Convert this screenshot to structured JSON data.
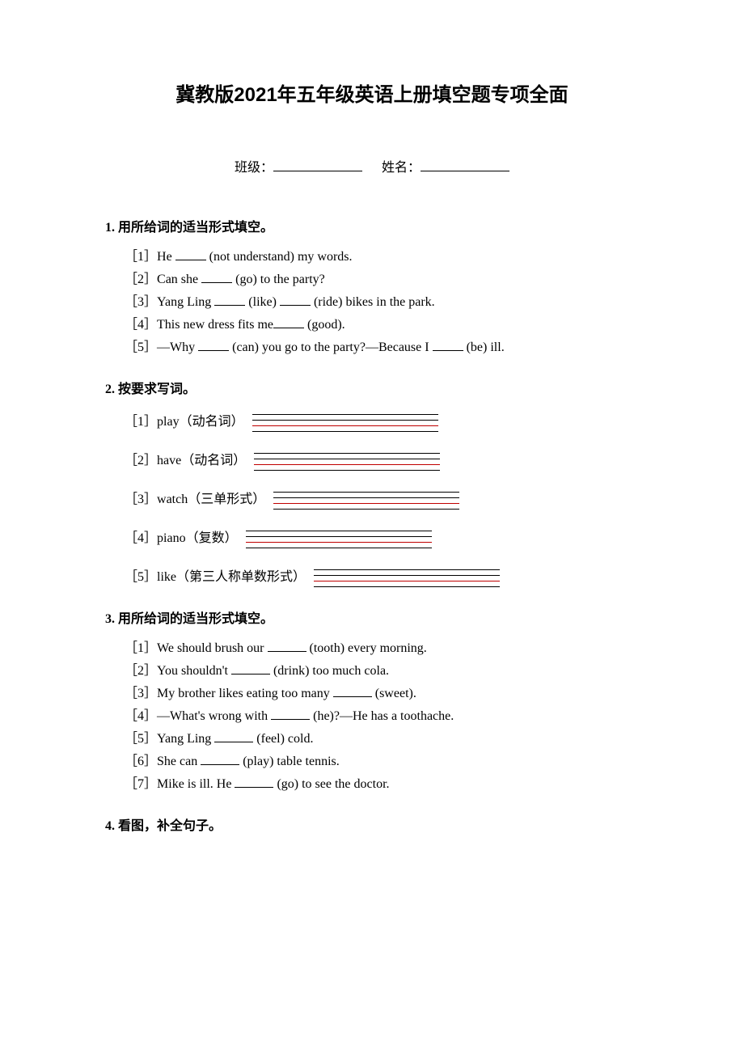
{
  "title": "冀教版2021年五年级英语上册填空题专项全面",
  "info": {
    "class_label": "班级：",
    "name_label": "姓名："
  },
  "sections": {
    "s1": {
      "heading": "1. 用所给词的适当形式填空。",
      "items": [
        {
          "num": "［1］",
          "pre": "He ",
          "post": " (not understand) my words."
        },
        {
          "num": "［2］",
          "pre": "Can she ",
          "post": " (go) to the party?"
        },
        {
          "num": "［3］",
          "pre": "Yang Ling ",
          "mid": " (like) ",
          "post": " (ride) bikes in the park."
        },
        {
          "num": "［4］",
          "pre": "This new dress fits me",
          "post": " (good)."
        },
        {
          "num": "［5］",
          "pre": "—Why ",
          "mid": " (can) you go to the party?—Because I ",
          "post": " (be) ill."
        }
      ]
    },
    "s2": {
      "heading": "2. 按要求写词。",
      "items": [
        {
          "num": "［1］",
          "label": "play（动名词）"
        },
        {
          "num": "［2］",
          "label": "have（动名词）"
        },
        {
          "num": "［3］",
          "label": "watch（三单形式）"
        },
        {
          "num": "［4］",
          "label": "piano（复数）"
        },
        {
          "num": "［5］",
          "label": "like（第三人称单数形式）"
        }
      ]
    },
    "s3": {
      "heading": "3. 用所给词的适当形式填空。",
      "items": [
        {
          "num": "［1］",
          "pre": "We should brush our ",
          "post": " (tooth) every morning."
        },
        {
          "num": "［2］",
          "pre": "You shouldn't ",
          "post": " (drink) too much cola."
        },
        {
          "num": "［3］",
          "pre": "My brother likes eating too many ",
          "post": " (sweet)."
        },
        {
          "num": "［4］",
          "pre": "—What's wrong with ",
          "post": " (he)?—He has a toothache."
        },
        {
          "num": "［5］",
          "pre": "Yang Ling ",
          "post": " (feel) cold."
        },
        {
          "num": "［6］",
          "pre": "She can ",
          "post": " (play) table tennis."
        },
        {
          "num": "［7］",
          "pre": "Mike is ill. He ",
          "post": " (go) to see the doctor."
        }
      ]
    },
    "s4": {
      "heading": "4. 看图，补全句子。"
    }
  },
  "colors": {
    "text": "#000000",
    "background": "#ffffff",
    "underline_black": "#000000",
    "underline_red": "#c00000"
  },
  "fonts": {
    "title_size_pt": 18,
    "body_size_pt": 12
  }
}
